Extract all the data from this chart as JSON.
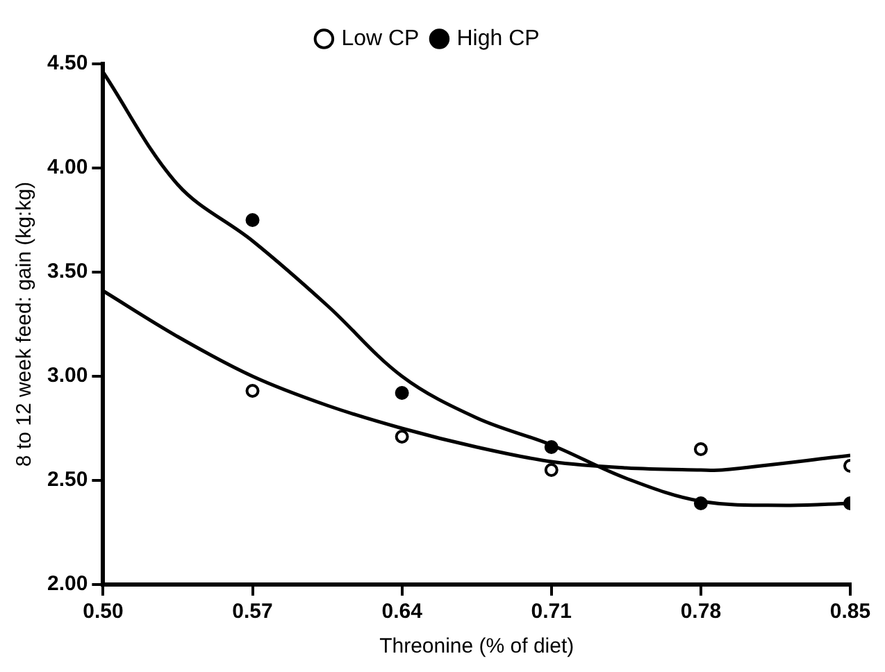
{
  "chart_data": {
    "type": "scatter",
    "xlabel": "Threonine (% of diet)",
    "ylabel": "8 to 12 week feed: gain (kg:kg)",
    "xlim": [
      0.5,
      0.85
    ],
    "xticks": [
      {
        "value": 0.5,
        "label": "0.50"
      },
      {
        "value": 0.57,
        "label": "0.57"
      },
      {
        "value": 0.64,
        "label": "0.64"
      },
      {
        "value": 0.71,
        "label": "0.71"
      },
      {
        "value": 0.78,
        "label": "0.78"
      },
      {
        "value": 0.85,
        "label": "0.85"
      }
    ],
    "ylim": [
      2,
      4.5
    ],
    "yticks": [
      {
        "value": 2,
        "label": "2.00"
      },
      {
        "value": 2.5,
        "label": "2.50"
      },
      {
        "value": 3,
        "label": "3.00"
      },
      {
        "value": 3.5,
        "label": "3.50"
      },
      {
        "value": 4,
        "label": "4.00"
      },
      {
        "value": 4.5,
        "label": "4.50"
      }
    ],
    "grid": false,
    "legend": "top",
    "series": [
      {
        "name": "Low CP",
        "color": "#000000",
        "marker": "circle",
        "x": [
          0.57,
          0.64,
          0.71,
          0.78,
          0.85
        ],
        "values": [
          2.93,
          2.71,
          2.55,
          2.65,
          2.57
        ]
      },
      {
        "name": "High CP",
        "color": "#000000",
        "marker": "circle",
        "x": [
          0.57,
          0.64,
          0.71,
          0.78,
          0.85
        ],
        "values": [
          3.75,
          2.92,
          2.66,
          2.39,
          2.39
        ]
      },
      {
        "type": "line",
        "color": "#000000",
        "x": [
          0.5,
          0.535,
          0.57,
          0.605,
          0.64,
          0.675,
          0.71,
          0.745,
          0.78,
          0.79,
          0.85
        ],
        "values": [
          3.41,
          3.19,
          3.0,
          2.86,
          2.75,
          2.66,
          2.59,
          2.56,
          2.55,
          2.55,
          2.62
        ]
      },
      {
        "type": "line",
        "color": "#000000",
        "x": [
          0.5,
          0.535,
          0.57,
          0.605,
          0.64,
          0.675,
          0.71,
          0.745,
          0.78,
          0.82,
          0.85
        ],
        "values": [
          4.46,
          3.92,
          3.65,
          3.34,
          3.0,
          2.8,
          2.67,
          2.51,
          2.4,
          2.38,
          2.39
        ]
      }
    ]
  }
}
